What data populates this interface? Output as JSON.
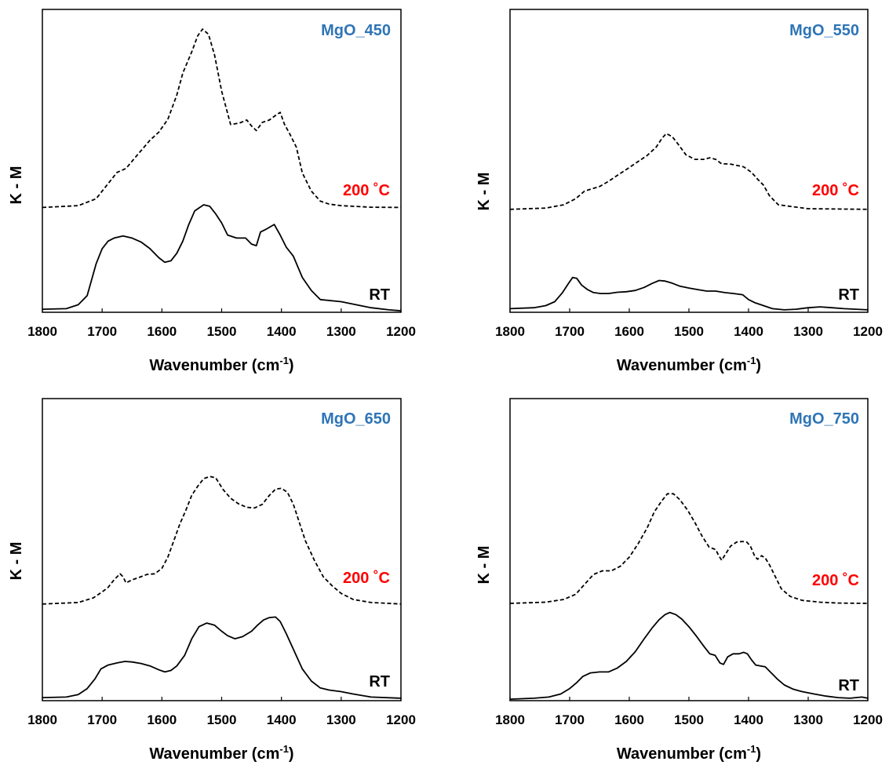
{
  "figure": {
    "layout": "2x2 grid"
  },
  "chart_data": [
    {
      "type": "line",
      "title": "MgO_450",
      "title_color": "#2E75B6",
      "xlabel": "Wavenumber (cm",
      "xlabel_sup": "-1",
      "xlabel_close": ")",
      "ylabel": "K - M",
      "xlim": [
        1800,
        1200
      ],
      "x_reversed": true,
      "ylim": [
        0,
        1
      ],
      "y_ticks_shown": false,
      "grid": false,
      "xticks": [
        "1800",
        "1700",
        "1600",
        "1500",
        "1400",
        "1300",
        "1200"
      ],
      "series": [
        {
          "name": "200 ˚C",
          "label_color": "#FF0000",
          "style": "dashed",
          "x": [
            1800,
            1740,
            1710,
            1690,
            1675,
            1660,
            1640,
            1620,
            1605,
            1590,
            1575,
            1565,
            1550,
            1540,
            1532,
            1522,
            1512,
            1500,
            1485,
            1470,
            1458,
            1450,
            1442,
            1432,
            1420,
            1410,
            1402,
            1395,
            1385,
            1375,
            1365,
            1350,
            1335,
            1320,
            1300,
            1250,
            1200
          ],
          "y": [
            0.346,
            0.352,
            0.375,
            0.425,
            0.462,
            0.475,
            0.522,
            0.568,
            0.595,
            0.637,
            0.718,
            0.79,
            0.86,
            0.913,
            0.935,
            0.918,
            0.85,
            0.73,
            0.62,
            0.625,
            0.635,
            0.615,
            0.6,
            0.627,
            0.635,
            0.65,
            0.66,
            0.621,
            0.585,
            0.545,
            0.46,
            0.4,
            0.367,
            0.357,
            0.352,
            0.347,
            0.346
          ]
        },
        {
          "name": "RT",
          "label_color": "#000000",
          "style": "solid",
          "x": [
            1800,
            1760,
            1740,
            1725,
            1710,
            1700,
            1690,
            1680,
            1665,
            1650,
            1635,
            1620,
            1605,
            1595,
            1585,
            1575,
            1565,
            1555,
            1545,
            1530,
            1520,
            1510,
            1500,
            1490,
            1475,
            1460,
            1450,
            1442,
            1435,
            1425,
            1412,
            1402,
            1392,
            1380,
            1365,
            1350,
            1335,
            1300,
            1250,
            1220,
            1200
          ],
          "y": [
            0.01,
            0.012,
            0.025,
            0.055,
            0.16,
            0.21,
            0.235,
            0.245,
            0.252,
            0.245,
            0.232,
            0.21,
            0.18,
            0.165,
            0.17,
            0.195,
            0.235,
            0.29,
            0.335,
            0.355,
            0.35,
            0.325,
            0.295,
            0.255,
            0.245,
            0.245,
            0.225,
            0.22,
            0.265,
            0.275,
            0.29,
            0.255,
            0.215,
            0.185,
            0.115,
            0.072,
            0.042,
            0.035,
            0.015,
            0.008,
            0.005
          ]
        }
      ]
    },
    {
      "type": "line",
      "title": "MgO_550",
      "title_color": "#2E75B6",
      "xlabel": "Wavenumber (cm",
      "xlabel_sup": "-1",
      "xlabel_close": ")",
      "ylabel": "K - M",
      "xlim": [
        1800,
        1200
      ],
      "x_reversed": true,
      "ylim": [
        0,
        1
      ],
      "y_ticks_shown": false,
      "grid": false,
      "xticks": [
        "1800",
        "1700",
        "1600",
        "1500",
        "1400",
        "1300",
        "1200"
      ],
      "series": [
        {
          "name": "200 ˚C",
          "label_color": "#FF0000",
          "style": "dashed",
          "x": [
            1800,
            1740,
            1710,
            1690,
            1675,
            1662,
            1650,
            1635,
            1620,
            1600,
            1585,
            1570,
            1555,
            1545,
            1538,
            1528,
            1518,
            1505,
            1490,
            1475,
            1465,
            1455,
            1445,
            1432,
            1420,
            1408,
            1395,
            1385,
            1375,
            1365,
            1350,
            1300,
            1250,
            1200
          ],
          "y": [
            0.34,
            0.344,
            0.355,
            0.375,
            0.4,
            0.408,
            0.415,
            0.432,
            0.452,
            0.478,
            0.498,
            0.518,
            0.545,
            0.575,
            0.59,
            0.58,
            0.555,
            0.52,
            0.505,
            0.505,
            0.51,
            0.505,
            0.49,
            0.49,
            0.485,
            0.48,
            0.462,
            0.44,
            0.42,
            0.385,
            0.355,
            0.342,
            0.341,
            0.34
          ]
        },
        {
          "name": "RT",
          "label_color": "#000000",
          "style": "solid",
          "x": [
            1800,
            1760,
            1740,
            1725,
            1712,
            1702,
            1695,
            1688,
            1680,
            1670,
            1660,
            1648,
            1635,
            1620,
            1605,
            1590,
            1575,
            1562,
            1550,
            1540,
            1528,
            1515,
            1500,
            1485,
            1470,
            1455,
            1440,
            1425,
            1410,
            1400,
            1390,
            1375,
            1360,
            1340,
            1320,
            1300,
            1280,
            1260,
            1240,
            1220,
            1200
          ],
          "y": [
            0.012,
            0.015,
            0.022,
            0.035,
            0.065,
            0.095,
            0.115,
            0.112,
            0.09,
            0.075,
            0.065,
            0.062,
            0.062,
            0.066,
            0.068,
            0.072,
            0.082,
            0.095,
            0.105,
            0.103,
            0.096,
            0.086,
            0.08,
            0.075,
            0.07,
            0.07,
            0.065,
            0.062,
            0.058,
            0.042,
            0.032,
            0.022,
            0.012,
            0.008,
            0.01,
            0.015,
            0.018,
            0.015,
            0.012,
            0.01,
            0.008
          ]
        }
      ]
    },
    {
      "type": "line",
      "title": "MgO_650",
      "title_color": "#2E75B6",
      "xlabel": "Wavenumber (cm",
      "xlabel_sup": "-1",
      "xlabel_close": ")",
      "ylabel": "K - M",
      "xlim": [
        1800,
        1200
      ],
      "x_reversed": true,
      "ylim": [
        0,
        1
      ],
      "y_ticks_shown": false,
      "grid": false,
      "xticks": [
        "1800",
        "1700",
        "1600",
        "1500",
        "1400",
        "1300",
        "1200"
      ],
      "series": [
        {
          "name": "200 ˚C",
          "label_color": "#FF0000",
          "style": "dashed",
          "x": [
            1800,
            1740,
            1715,
            1700,
            1690,
            1680,
            1670,
            1665,
            1660,
            1650,
            1638,
            1625,
            1612,
            1600,
            1590,
            1580,
            1570,
            1560,
            1550,
            1540,
            1530,
            1520,
            1510,
            1498,
            1485,
            1472,
            1458,
            1445,
            1432,
            1420,
            1410,
            1400,
            1390,
            1380,
            1370,
            1360,
            1345,
            1330,
            1315,
            1300,
            1280,
            1250,
            1200
          ],
          "y": [
            0.32,
            0.325,
            0.34,
            0.36,
            0.375,
            0.4,
            0.42,
            0.41,
            0.39,
            0.4,
            0.408,
            0.418,
            0.42,
            0.438,
            0.475,
            0.53,
            0.585,
            0.63,
            0.68,
            0.71,
            0.735,
            0.742,
            0.738,
            0.7,
            0.67,
            0.652,
            0.64,
            0.638,
            0.65,
            0.68,
            0.7,
            0.703,
            0.69,
            0.65,
            0.59,
            0.53,
            0.465,
            0.41,
            0.38,
            0.355,
            0.335,
            0.325,
            0.32
          ]
        },
        {
          "name": "RT",
          "label_color": "#000000",
          "style": "solid",
          "x": [
            1800,
            1760,
            1740,
            1725,
            1712,
            1702,
            1690,
            1675,
            1662,
            1650,
            1635,
            1620,
            1605,
            1595,
            1585,
            1575,
            1562,
            1550,
            1538,
            1525,
            1512,
            1500,
            1490,
            1478,
            1465,
            1450,
            1440,
            1430,
            1420,
            1410,
            1402,
            1392,
            1380,
            1365,
            1350,
            1335,
            1320,
            1300,
            1280,
            1250,
            1200
          ],
          "y": [
            0.01,
            0.012,
            0.02,
            0.04,
            0.072,
            0.105,
            0.118,
            0.125,
            0.13,
            0.128,
            0.123,
            0.115,
            0.102,
            0.095,
            0.1,
            0.115,
            0.15,
            0.205,
            0.245,
            0.257,
            0.25,
            0.23,
            0.215,
            0.205,
            0.212,
            0.23,
            0.25,
            0.267,
            0.275,
            0.277,
            0.262,
            0.222,
            0.17,
            0.105,
            0.065,
            0.042,
            0.035,
            0.03,
            0.022,
            0.012,
            0.008
          ]
        }
      ]
    },
    {
      "type": "line",
      "title": "MgO_750",
      "title_color": "#2E75B6",
      "xlabel": "Wavenumber (cm",
      "xlabel_sup": "-1",
      "xlabel_close": ")",
      "ylabel": "K - M",
      "xlim": [
        1800,
        1200
      ],
      "x_reversed": true,
      "ylim": [
        0,
        1
      ],
      "y_ticks_shown": false,
      "grid": false,
      "xticks": [
        "1800",
        "1700",
        "1600",
        "1500",
        "1400",
        "1300",
        "1200"
      ],
      "series": [
        {
          "name": "200 ˚C",
          "label_color": "#FF0000",
          "style": "dashed",
          "x": [
            1800,
            1740,
            1710,
            1690,
            1675,
            1660,
            1645,
            1630,
            1615,
            1600,
            1585,
            1570,
            1558,
            1546,
            1536,
            1526,
            1515,
            1502,
            1490,
            1478,
            1466,
            1455,
            1450,
            1445,
            1438,
            1430,
            1420,
            1410,
            1403,
            1397,
            1390,
            1385,
            1378,
            1372,
            1365,
            1355,
            1345,
            1330,
            1310,
            1280,
            1250,
            1200
          ],
          "y": [
            0.322,
            0.326,
            0.335,
            0.352,
            0.385,
            0.418,
            0.43,
            0.43,
            0.445,
            0.475,
            0.52,
            0.572,
            0.625,
            0.66,
            0.685,
            0.685,
            0.665,
            0.63,
            0.59,
            0.545,
            0.508,
            0.5,
            0.48,
            0.465,
            0.487,
            0.512,
            0.525,
            0.527,
            0.525,
            0.512,
            0.48,
            0.468,
            0.48,
            0.472,
            0.45,
            0.41,
            0.37,
            0.345,
            0.332,
            0.326,
            0.323,
            0.322
          ]
        },
        {
          "name": "RT",
          "label_color": "#000000",
          "style": "solid",
          "x": [
            1800,
            1760,
            1735,
            1715,
            1700,
            1688,
            1678,
            1665,
            1650,
            1635,
            1620,
            1605,
            1590,
            1575,
            1562,
            1550,
            1540,
            1532,
            1522,
            1512,
            1500,
            1488,
            1475,
            1465,
            1456,
            1448,
            1442,
            1435,
            1426,
            1416,
            1408,
            1402,
            1395,
            1388,
            1380,
            1372,
            1365,
            1352,
            1340,
            1325,
            1310,
            1290,
            1270,
            1250,
            1230,
            1210,
            1200
          ],
          "y": [
            0.005,
            0.008,
            0.012,
            0.022,
            0.04,
            0.06,
            0.08,
            0.092,
            0.095,
            0.095,
            0.108,
            0.13,
            0.162,
            0.205,
            0.24,
            0.268,
            0.285,
            0.292,
            0.285,
            0.27,
            0.245,
            0.215,
            0.18,
            0.155,
            0.15,
            0.125,
            0.12,
            0.145,
            0.155,
            0.155,
            0.16,
            0.155,
            0.135,
            0.118,
            0.115,
            0.112,
            0.098,
            0.072,
            0.052,
            0.038,
            0.03,
            0.022,
            0.015,
            0.01,
            0.008,
            0.012,
            0.008
          ]
        }
      ]
    }
  ]
}
